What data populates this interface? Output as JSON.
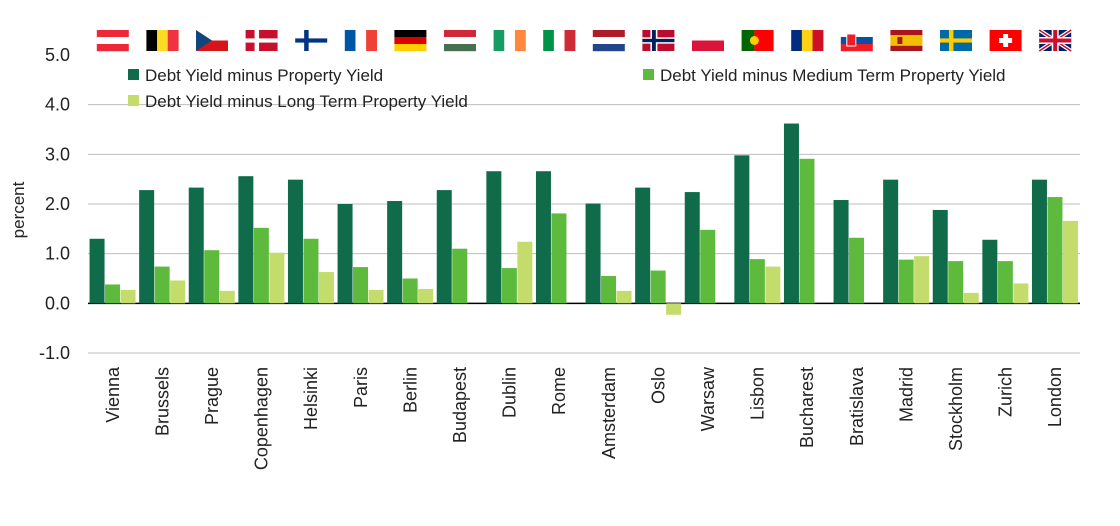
{
  "chart_data": {
    "type": "bar",
    "title": "",
    "ylabel": "percent",
    "xlabel": "",
    "ylim": [
      -1.0,
      5.0
    ],
    "yticks": [
      "5.0",
      "4.0",
      "3.0",
      "2.0",
      "1.0",
      "0.0",
      "-1.0"
    ],
    "grid": "horizontal",
    "legend_position": "top",
    "categories": [
      "Vienna",
      "Brussels",
      "Prague",
      "Copenhagen",
      "Helsinki",
      "Paris",
      "Berlin",
      "Budapest",
      "Dublin",
      "Rome",
      "Amsterdam",
      "Oslo",
      "Warsaw",
      "Lisbon",
      "Bucharest",
      "Bratislava",
      "Madrid",
      "Stockholm",
      "Zurich",
      "London"
    ],
    "series": [
      {
        "name": "Debt Yield minus Property Yield",
        "color": "#0f6b4a",
        "values": [
          1.3,
          2.28,
          2.33,
          2.56,
          2.49,
          2.0,
          2.06,
          2.28,
          2.66,
          2.66,
          2.01,
          2.33,
          2.24,
          2.98,
          3.62,
          2.08,
          2.49,
          1.88,
          1.28,
          2.49
        ]
      },
      {
        "name": "Debt Yield minus Medium Term Property Yield",
        "color": "#5dba3c",
        "values": [
          0.38,
          0.74,
          1.07,
          1.52,
          1.3,
          0.73,
          0.5,
          1.1,
          0.71,
          1.81,
          0.55,
          0.66,
          1.48,
          0.89,
          2.91,
          1.32,
          0.88,
          0.85,
          0.85,
          2.14
        ]
      },
      {
        "name": "Debt Yield minus Long Term Property Yield",
        "color": "#c4dc6b",
        "values": [
          0.27,
          0.46,
          0.25,
          1.02,
          0.63,
          0.27,
          0.29,
          null,
          1.24,
          null,
          0.25,
          -0.23,
          null,
          0.74,
          null,
          null,
          0.95,
          0.21,
          0.4,
          1.66
        ]
      }
    ]
  },
  "flags": [
    {
      "country": "Austria",
      "stripes": "h",
      "colors": [
        "#ed2939",
        "#ffffff",
        "#ed2939"
      ]
    },
    {
      "country": "Belgium",
      "stripes": "v",
      "colors": [
        "#000000",
        "#fdda24",
        "#ef3340"
      ]
    },
    {
      "country": "Czech Republic",
      "stripes": "czech",
      "colors": [
        "#ffffff",
        "#d7141a",
        "#11457e"
      ]
    },
    {
      "country": "Denmark",
      "stripes": "nordic",
      "colors": [
        "#c8102e",
        "#ffffff"
      ]
    },
    {
      "country": "Finland",
      "stripes": "nordic",
      "colors": [
        "#ffffff",
        "#003580"
      ]
    },
    {
      "country": "France",
      "stripes": "v",
      "colors": [
        "#0055a4",
        "#ffffff",
        "#ef4135"
      ]
    },
    {
      "country": "Germany",
      "stripes": "h",
      "colors": [
        "#000000",
        "#dd0000",
        "#ffce00"
      ]
    },
    {
      "country": "Hungary",
      "stripes": "h",
      "colors": [
        "#ce2939",
        "#ffffff",
        "#477050"
      ]
    },
    {
      "country": "Ireland",
      "stripes": "v",
      "colors": [
        "#169b62",
        "#ffffff",
        "#ff883e"
      ]
    },
    {
      "country": "Italy",
      "stripes": "v",
      "colors": [
        "#009246",
        "#ffffff",
        "#ce2b37"
      ]
    },
    {
      "country": "Netherlands",
      "stripes": "h",
      "colors": [
        "#ae1c28",
        "#ffffff",
        "#21468b"
      ]
    },
    {
      "country": "Norway",
      "stripes": "nordic2",
      "colors": [
        "#ba0c2f",
        "#ffffff",
        "#00205b"
      ]
    },
    {
      "country": "Poland",
      "stripes": "h2",
      "colors": [
        "#ffffff",
        "#dc143c"
      ]
    },
    {
      "country": "Portugal",
      "stripes": "portugal",
      "colors": [
        "#006600",
        "#ff0000",
        "#ffcc00"
      ]
    },
    {
      "country": "Romania",
      "stripes": "v",
      "colors": [
        "#002b7f",
        "#fcd116",
        "#ce1126"
      ]
    },
    {
      "country": "Slovakia",
      "stripes": "slovakia",
      "colors": [
        "#ffffff",
        "#0b4ea2",
        "#ee1c25"
      ]
    },
    {
      "country": "Spain",
      "stripes": "spain",
      "colors": [
        "#aa151b",
        "#f1bf00",
        "#aa151b"
      ]
    },
    {
      "country": "Sweden",
      "stripes": "nordic",
      "colors": [
        "#006aa7",
        "#fecc00"
      ]
    },
    {
      "country": "Switzerland",
      "stripes": "swiss",
      "colors": [
        "#ff0000",
        "#ffffff"
      ]
    },
    {
      "country": "United Kingdom",
      "stripes": "uk",
      "colors": [
        "#012169",
        "#ffffff",
        "#c8102e"
      ]
    }
  ]
}
